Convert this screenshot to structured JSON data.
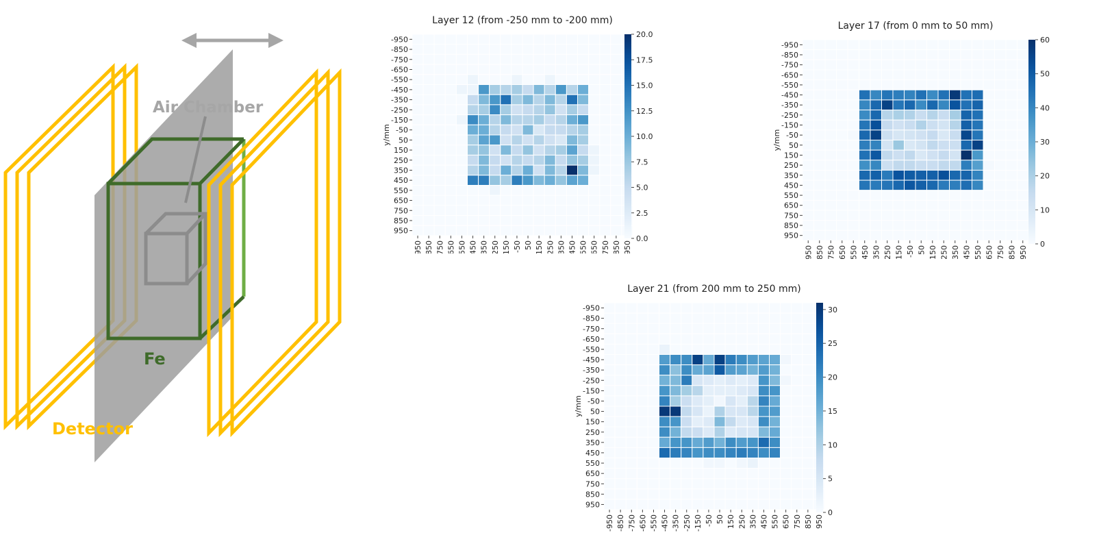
{
  "diagram": {
    "air_chamber_label": "Air Chamber",
    "fe_label": "Fe",
    "detector_label": "Detector",
    "colors": {
      "detector": "#FFC000",
      "fe": "#3F6B2A",
      "fe_light": "#6FAE45",
      "plane": "#A6A6A6",
      "air_chamber": "#8C8C8C",
      "arrow": "#A6A6A6",
      "label_gray": "#A6A6A6"
    }
  },
  "chart_data": [
    {
      "type": "heatmap",
      "title": "Layer 12 (from -250 mm to -200 mm)",
      "ylabel": "y/mm",
      "xlabel": "-",
      "x_ticks": [
        "-950",
        "-850",
        "-750",
        "-650",
        "-550",
        "-450",
        "-350",
        "-250",
        "-150",
        "-50",
        "50",
        "150",
        "250",
        "350",
        "450",
        "550",
        "650",
        "750",
        "850",
        "950"
      ],
      "y_ticks": [
        "-950",
        "-850",
        "-750",
        "-650",
        "-550",
        "-450",
        "-350",
        "-250",
        "-150",
        "-50",
        "50",
        "150",
        "250",
        "350",
        "450",
        "550",
        "650",
        "750",
        "850",
        "950"
      ],
      "colorbar_ticks": [
        "0.0",
        "2.5",
        "5.0",
        "7.5",
        "10.0",
        "12.5",
        "15.0",
        "17.5",
        "20.0"
      ],
      "vmin": 0,
      "vmax": 20,
      "colormap": "Blues",
      "row_start": 4,
      "col_start": 4,
      "values": [
        [
          0,
          1,
          0,
          0,
          0,
          1,
          0,
          0,
          1,
          0,
          0,
          0,
          0
        ],
        [
          1,
          1,
          12,
          7,
          6,
          7,
          5,
          9,
          6,
          12,
          6,
          10,
          0
        ],
        [
          0,
          5,
          9,
          12,
          15,
          7,
          9,
          6,
          9,
          6,
          15,
          9,
          0
        ],
        [
          0,
          6,
          7,
          13,
          7,
          4,
          5,
          6,
          8,
          4,
          7,
          5,
          0
        ],
        [
          1,
          13,
          10,
          6,
          9,
          6,
          6,
          7,
          5,
          6,
          10,
          12,
          0
        ],
        [
          0,
          10,
          10,
          6,
          5,
          4,
          9,
          3,
          5,
          5,
          6,
          7,
          0
        ],
        [
          0,
          7,
          11,
          12,
          4,
          6,
          4,
          6,
          4,
          3,
          9,
          7,
          0
        ],
        [
          0,
          7,
          8,
          4,
          9,
          5,
          8,
          4,
          6,
          7,
          11,
          5,
          1
        ],
        [
          0,
          5,
          9,
          5,
          4,
          6,
          5,
          6,
          9,
          5,
          8,
          7,
          1
        ],
        [
          0,
          6,
          9,
          5,
          10,
          6,
          10,
          4,
          9,
          6,
          20,
          9,
          1
        ],
        [
          0,
          14,
          14,
          8,
          7,
          14,
          12,
          9,
          10,
          8,
          11,
          10,
          0
        ],
        [
          0,
          0,
          0,
          1,
          0,
          0,
          0,
          0,
          0,
          0,
          0,
          0,
          0
        ]
      ]
    },
    {
      "type": "heatmap",
      "title": "Layer 17 (from 0 mm to 50 mm)",
      "ylabel": "y/mm",
      "xlabel": "-",
      "x_ticks": [
        "-950",
        "-850",
        "-750",
        "-650",
        "-550",
        "-450",
        "-350",
        "-250",
        "-150",
        "-50",
        "50",
        "150",
        "250",
        "350",
        "450",
        "550",
        "650",
        "750",
        "850",
        "950"
      ],
      "y_ticks": [
        "-950",
        "-850",
        "-750",
        "-650",
        "-550",
        "-450",
        "-350",
        "-250",
        "-150",
        "-50",
        "50",
        "150",
        "250",
        "350",
        "450",
        "550",
        "650",
        "750",
        "850",
        "950"
      ],
      "colorbar_ticks": [
        "0",
        "10",
        "20",
        "30",
        "40",
        "50",
        "60"
      ],
      "vmin": 0,
      "vmax": 60,
      "colormap": "Blues",
      "row_start": 4,
      "col_start": 4,
      "values": [
        [
          0,
          0,
          0,
          0,
          0,
          0,
          0,
          0,
          0,
          0,
          0,
          0,
          0
        ],
        [
          0,
          45,
          40,
          44,
          42,
          41,
          45,
          39,
          45,
          58,
          45,
          46,
          0
        ],
        [
          0,
          40,
          47,
          56,
          44,
          47,
          39,
          47,
          40,
          52,
          45,
          48,
          0
        ],
        [
          0,
          39,
          47,
          18,
          20,
          19,
          14,
          18,
          14,
          21,
          48,
          45,
          0
        ],
        [
          0,
          44,
          53,
          15,
          12,
          14,
          19,
          13,
          11,
          18,
          49,
          44,
          0
        ],
        [
          1,
          47,
          56,
          13,
          10,
          11,
          12,
          15,
          9,
          14,
          55,
          44,
          0
        ],
        [
          0,
          42,
          41,
          11,
          23,
          9,
          11,
          16,
          13,
          13,
          47,
          56,
          0
        ],
        [
          0,
          45,
          51,
          16,
          13,
          16,
          9,
          12,
          15,
          11,
          61,
          36,
          0
        ],
        [
          0,
          38,
          40,
          13,
          16,
          16,
          14,
          14,
          16,
          16,
          42,
          34,
          1
        ],
        [
          0,
          47,
          49,
          43,
          52,
          50,
          49,
          49,
          53,
          47,
          48,
          41,
          0
        ],
        [
          0,
          44,
          43,
          44,
          47,
          51,
          49,
          47,
          43,
          42,
          46,
          40,
          0
        ],
        [
          0,
          0,
          0,
          0,
          0,
          0,
          0,
          0,
          0,
          0,
          0,
          0,
          0
        ]
      ]
    },
    {
      "type": "heatmap",
      "title": "Layer 21 (from 200 mm to 250 mm)",
      "ylabel": "y/mm",
      "xlabel": "-",
      "x_ticks": [
        "-950",
        "-850",
        "-750",
        "-650",
        "-550",
        "-450",
        "-350",
        "-250",
        "-150",
        "-50",
        "50",
        "150",
        "250",
        "350",
        "450",
        "550",
        "650",
        "750",
        "850",
        "950"
      ],
      "y_ticks": [
        "-950",
        "-850",
        "-750",
        "-650",
        "-550",
        "-450",
        "-350",
        "-250",
        "-150",
        "-50",
        "50",
        "150",
        "250",
        "350",
        "450",
        "550",
        "650",
        "750",
        "850",
        "950"
      ],
      "colorbar_ticks": [
        "0",
        "5",
        "10",
        "15",
        "20",
        "25",
        "30"
      ],
      "vmin": 0,
      "vmax": 31,
      "colormap": "Blues",
      "row_start": 4,
      "col_start": 4,
      "values": [
        [
          0,
          2,
          0,
          0,
          0,
          0,
          0,
          0,
          0,
          0,
          0,
          0,
          0
        ],
        [
          0,
          18,
          20,
          20,
          29,
          16,
          29,
          22,
          20,
          18,
          17,
          16,
          1
        ],
        [
          0,
          20,
          13,
          20,
          16,
          17,
          26,
          18,
          17,
          15,
          18,
          15,
          0
        ],
        [
          0,
          15,
          14,
          22,
          5,
          4,
          3,
          4,
          3,
          4,
          19,
          14,
          1
        ],
        [
          0,
          19,
          14,
          11,
          9,
          3,
          3,
          3,
          4,
          5,
          20,
          19,
          0
        ],
        [
          0,
          21,
          11,
          7,
          4,
          3,
          1,
          5,
          3,
          9,
          21,
          16,
          0
        ],
        [
          0,
          30,
          30,
          8,
          5,
          2,
          10,
          5,
          5,
          9,
          19,
          18,
          0
        ],
        [
          0,
          20,
          19,
          7,
          3,
          4,
          14,
          8,
          4,
          5,
          20,
          15,
          0
        ],
        [
          0,
          20,
          15,
          8,
          7,
          4,
          10,
          4,
          5,
          5,
          14,
          16,
          0
        ],
        [
          0,
          16,
          19,
          19,
          16,
          18,
          15,
          20,
          18,
          19,
          24,
          20,
          0
        ],
        [
          0,
          24,
          22,
          21,
          19,
          20,
          20,
          21,
          22,
          21,
          20,
          21,
          0
        ],
        [
          0,
          0,
          0,
          0,
          0,
          1,
          1,
          0,
          1,
          2,
          0,
          0,
          0
        ]
      ]
    }
  ]
}
